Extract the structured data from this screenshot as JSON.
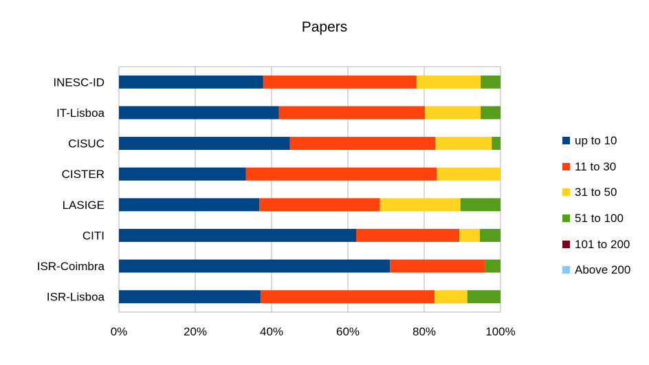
{
  "chart_data": {
    "type": "bar",
    "orientation": "horizontal",
    "stacking": "percent",
    "title": "Papers",
    "xlabel": "",
    "ylabel": "",
    "xlim": [
      0,
      100
    ],
    "x_ticks": [
      "0%",
      "20%",
      "40%",
      "60%",
      "80%",
      "100%"
    ],
    "grid": true,
    "legend_position": "right",
    "categories": [
      "INESC-ID",
      "IT-Lisboa",
      "CISUC",
      "CISTER",
      "LASIGE",
      "CITI",
      "ISR-Coimbra",
      "ISR-Lisboa"
    ],
    "series": [
      {
        "name": "up to 10",
        "color": "#004586",
        "values": [
          37.8,
          41.9,
          44.8,
          33.3,
          36.8,
          62.1,
          71.0,
          37.1
        ]
      },
      {
        "name": "11 to 30",
        "color": "#ff420e",
        "values": [
          40.2,
          38.3,
          38.1,
          50.0,
          31.6,
          27.0,
          25.0,
          45.6
        ]
      },
      {
        "name": "31 to 50",
        "color": "#ffd320",
        "values": [
          16.8,
          14.6,
          14.8,
          16.7,
          21.1,
          5.4,
          0,
          8.6
        ]
      },
      {
        "name": "51 to 100",
        "color": "#579d1c",
        "values": [
          5.2,
          5.2,
          2.3,
          0,
          10.5,
          5.4,
          4.0,
          8.7
        ]
      },
      {
        "name": "101 to 200",
        "color": "#7e0021",
        "values": [
          0,
          0,
          0,
          0,
          0,
          0,
          0,
          0
        ]
      },
      {
        "name": "Above 200",
        "color": "#83caff",
        "values": [
          0,
          0,
          0,
          0,
          0,
          0,
          0,
          0
        ]
      }
    ]
  }
}
